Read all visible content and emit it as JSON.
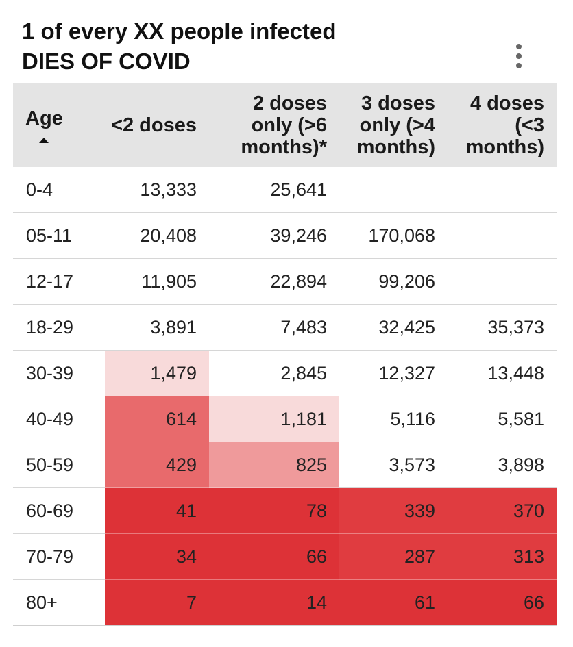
{
  "title": {
    "line1": "1 of every XX people infected",
    "line2": "DIES OF COVID"
  },
  "menu_icon": "more-vertical-icon",
  "chart_data": {
    "type": "table",
    "title": "1 of every XX people infected DIES OF COVID",
    "columns": [
      "Age",
      "<2 doses",
      "2 doses only (>6 months)*",
      "3 doses only (>4 months)",
      "4 doses (<3 months)"
    ],
    "sort": {
      "column": "Age",
      "direction": "ascending"
    },
    "rows": [
      {
        "age": "0-4",
        "values": [
          "13,333",
          "25,641",
          "",
          ""
        ]
      },
      {
        "age": "05-11",
        "values": [
          "20,408",
          "39,246",
          "170,068",
          ""
        ]
      },
      {
        "age": "12-17",
        "values": [
          "11,905",
          "22,894",
          "99,206",
          ""
        ]
      },
      {
        "age": "18-29",
        "values": [
          "3,891",
          "7,483",
          "32,425",
          "35,373"
        ]
      },
      {
        "age": "30-39",
        "values": [
          "1,479",
          "2,845",
          "12,327",
          "13,448"
        ]
      },
      {
        "age": "40-49",
        "values": [
          "614",
          "1,181",
          "5,116",
          "5,581"
        ]
      },
      {
        "age": "50-59",
        "values": [
          "429",
          "825",
          "3,573",
          "3,898"
        ]
      },
      {
        "age": "60-69",
        "values": [
          "41",
          "78",
          "339",
          "370"
        ]
      },
      {
        "age": "70-79",
        "values": [
          "34",
          "66",
          "287",
          "313"
        ]
      },
      {
        "age": "80+",
        "values": [
          "7",
          "14",
          "61",
          "66"
        ]
      }
    ],
    "heat_colors": {
      "strongest": "#dd3237",
      "strong": "#e03c40",
      "medium": "#e86a6c",
      "light": "#ef9a9b",
      "faint": "#f8dada",
      "none": "#ffffff"
    }
  }
}
